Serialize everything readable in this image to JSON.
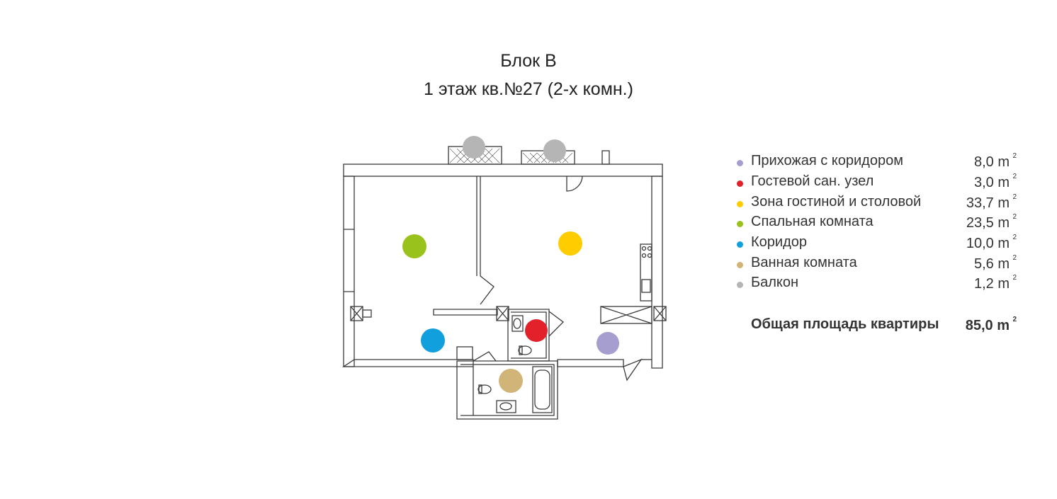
{
  "title": {
    "line1": "Блок В",
    "line2": "1 этаж кв.№27 (2-х комн.)"
  },
  "colors": {
    "hallway": "#a59ecf",
    "guest_wc": "#e3212b",
    "living": "#ffcc00",
    "bedroom": "#99c21c",
    "corridor": "#119fde",
    "bathroom": "#d1b477",
    "balcony": "#b5b5b5",
    "wall": "#3a3a3a"
  },
  "legend": [
    {
      "label": "Прихожая с коридором",
      "area": "8,0 m",
      "sup": "2",
      "color": "#a59ecf"
    },
    {
      "label": "Гостевой сан. узел",
      "area": "3,0 m",
      "sup": "2",
      "color": "#e3212b"
    },
    {
      "label": "Зона гостиной и столовой",
      "area": "33,7 m",
      "sup": "2",
      "color": "#ffcc00"
    },
    {
      "label": "Спальная комната",
      "area": "23,5 m",
      "sup": "2",
      "color": "#99c21c"
    },
    {
      "label": "Коридор",
      "area": "10,0 m",
      "sup": "2",
      "color": "#119fde"
    },
    {
      "label": "Ванная комната",
      "area": "5,6 m",
      "sup": "2",
      "color": "#d1b477"
    },
    {
      "label": "Балкон",
      "area": "1,2 m",
      "sup": "2",
      "color": "#b5b5b5"
    }
  ],
  "total": {
    "label": "Общая площадь квартиры",
    "area": "85,0 m",
    "sup": "2"
  }
}
